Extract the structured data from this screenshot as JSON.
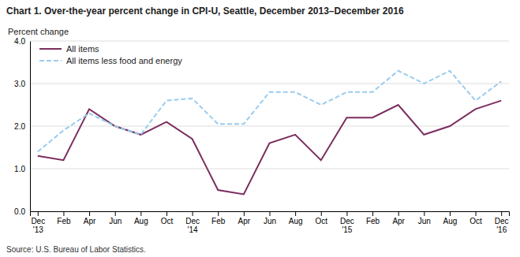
{
  "chart_data": {
    "type": "line",
    "title": "Chart 1. Over-the-year percent change in CPI-U, Seattle, December 2013–December 2016",
    "y_label": "Percent change",
    "annotations": [
      "Source: U.S. Bureau of Labor Statistics."
    ],
    "categories": [
      "Dec\n'13",
      "Feb",
      "Apr",
      "Jun",
      "Aug",
      "Oct",
      "Dec\n'14",
      "Feb",
      "Apr",
      "Jun",
      "Aug",
      "Oct",
      "Dec\n'15",
      "Feb",
      "Apr",
      "Jun",
      "Aug",
      "Oct",
      "Dec\n'16"
    ],
    "series": [
      {
        "name": "All items",
        "color": "#7b2d5e",
        "line_style": "solid",
        "values": [
          1.3,
          1.2,
          2.4,
          2.0,
          1.8,
          2.1,
          1.7,
          0.5,
          0.4,
          1.6,
          1.8,
          1.2,
          2.2,
          2.2,
          2.5,
          1.8,
          2.0,
          2.4,
          2.6
        ]
      },
      {
        "name": "All items less food and energy",
        "color": "#99ccee",
        "line_style": "dashed",
        "values": [
          1.4,
          1.9,
          2.3,
          2.0,
          1.8,
          2.6,
          2.65,
          2.05,
          2.05,
          2.8,
          2.8,
          2.5,
          2.8,
          2.8,
          3.3,
          3.0,
          3.3,
          2.6,
          3.05
        ]
      }
    ],
    "ylim": [
      0.0,
      4.0
    ],
    "yticks": [
      {
        "value": 0.0,
        "label": "0.0"
      },
      {
        "value": 1.0,
        "label": "1.0"
      },
      {
        "value": 2.0,
        "label": "2.0"
      },
      {
        "value": 3.0,
        "label": "3.0"
      },
      {
        "value": 4.0,
        "label": "4.0"
      }
    ],
    "grid": true,
    "legend": "upper left"
  }
}
